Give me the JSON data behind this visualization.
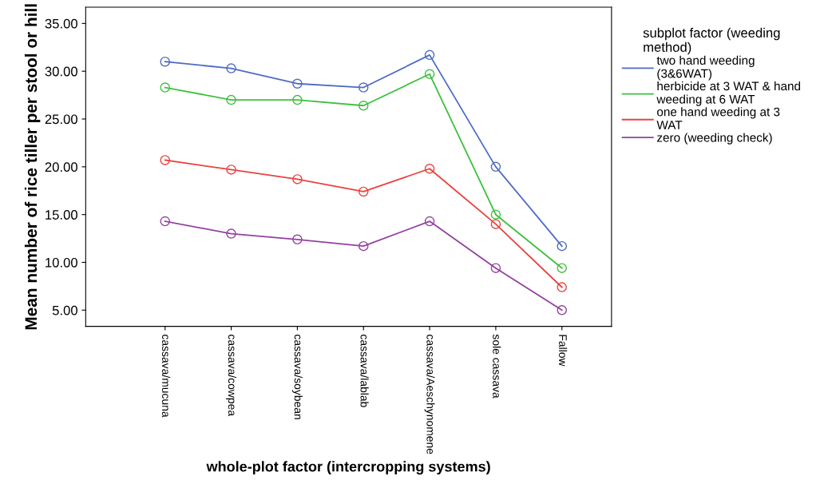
{
  "chart_data": {
    "type": "line",
    "xlabel": "whole-plot factor (intercropping systems)",
    "ylabel": "Mean number of rice tiller per stool or hill",
    "legend_title": "subplot factor (weeding\nmethod)",
    "categories": [
      "cassava/mucuna",
      "cassava/cowpea",
      "cassava/soybean",
      "cassava/lablab",
      "cassava/Aeschynomene",
      "sole cassava",
      "Fallow"
    ],
    "series": [
      {
        "name": "two hand weeding\n(3&6WAT)",
        "color": "#4f6cc4",
        "values": [
          31.0,
          30.3,
          28.7,
          28.3,
          31.7,
          20.0,
          11.7
        ]
      },
      {
        "name": "herbicide at 3 WAT & hand\nweeding at 6 WAT",
        "color": "#3fbf3f",
        "values": [
          28.3,
          27.0,
          27.0,
          26.4,
          29.7,
          15.0,
          9.4
        ]
      },
      {
        "name": "one hand weeding at 3\nWAT",
        "color": "#e8433f",
        "values": [
          20.7,
          19.7,
          18.7,
          17.4,
          19.8,
          14.0,
          7.4
        ]
      },
      {
        "name": "zero (weeding check)",
        "color": "#9440a0",
        "values": [
          14.3,
          13.0,
          12.4,
          11.7,
          14.3,
          9.4,
          5.0
        ]
      }
    ],
    "ylim": [
      3.3,
      36.7
    ],
    "yticks": [
      {
        "value": 5,
        "label": "5.00"
      },
      {
        "value": 10,
        "label": "10.00"
      },
      {
        "value": 15,
        "label": "15.00"
      },
      {
        "value": 20,
        "label": "20.00"
      },
      {
        "value": 25,
        "label": "25.00"
      },
      {
        "value": 30,
        "label": "30.00"
      },
      {
        "value": 35,
        "label": "35.00"
      }
    ],
    "grid": false,
    "legend": "right",
    "marker": "circle",
    "line_style": "solid"
  }
}
